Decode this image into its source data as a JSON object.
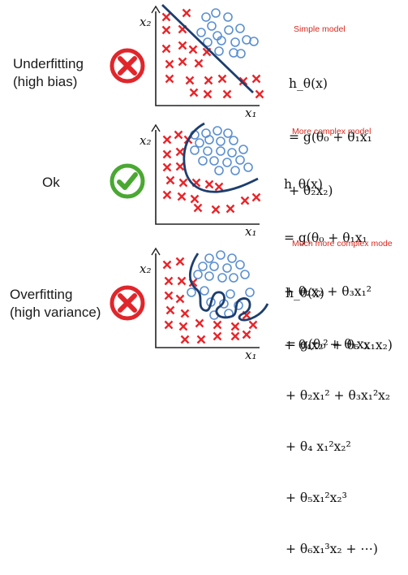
{
  "rows": [
    {
      "status_label_lines": [
        "Underfitting",
        "(high bias)"
      ],
      "status_icon": "red-x-circle-icon",
      "model_label": "Simple model",
      "equation_lines": [
        "h_θ(x)",
        "= g(θ₀ + θ₁x₁",
        "+ θ₂x₂)"
      ],
      "x_axis_label": "x₁",
      "y_axis_label": "x₂"
    },
    {
      "status_label_lines": [
        "Ok"
      ],
      "status_icon": "green-check-circle-icon",
      "model_label": "More complex model",
      "equation_lines": [
        "h_θ(x)",
        "= g(θ₀ + θ₁x₁",
        "+ θ₂x₂ + θ₃x₁²",
        "+ θ₄x₂² + θ₅ x₁x₂)"
      ],
      "x_axis_label": "x₁",
      "y_axis_label": "x₂"
    },
    {
      "status_label_lines": [
        "Overfitting",
        "(high variance)"
      ],
      "status_icon": "red-x-circle-icon",
      "model_label": "Much more complex mode",
      "equation_lines": [
        "h_θ(x)",
        "= g(θ₀ + θ₁x₁",
        "+ θ₂x₁² + θ₃x₁²x₂",
        "+ θ₄ x₁²x₂²",
        "+ θ₅x₁²x₂³",
        "+ θ₆x₁³x₂ + ⋯)"
      ],
      "x_axis_label": "x₁",
      "y_axis_label": "x₂"
    }
  ],
  "colors": {
    "cross": "#e8262a",
    "circle": "#5b8fd1",
    "boundary": "#1d3e6e",
    "bad": "#e0262b",
    "good": "#4aa832",
    "model_label": "#d8281e"
  }
}
